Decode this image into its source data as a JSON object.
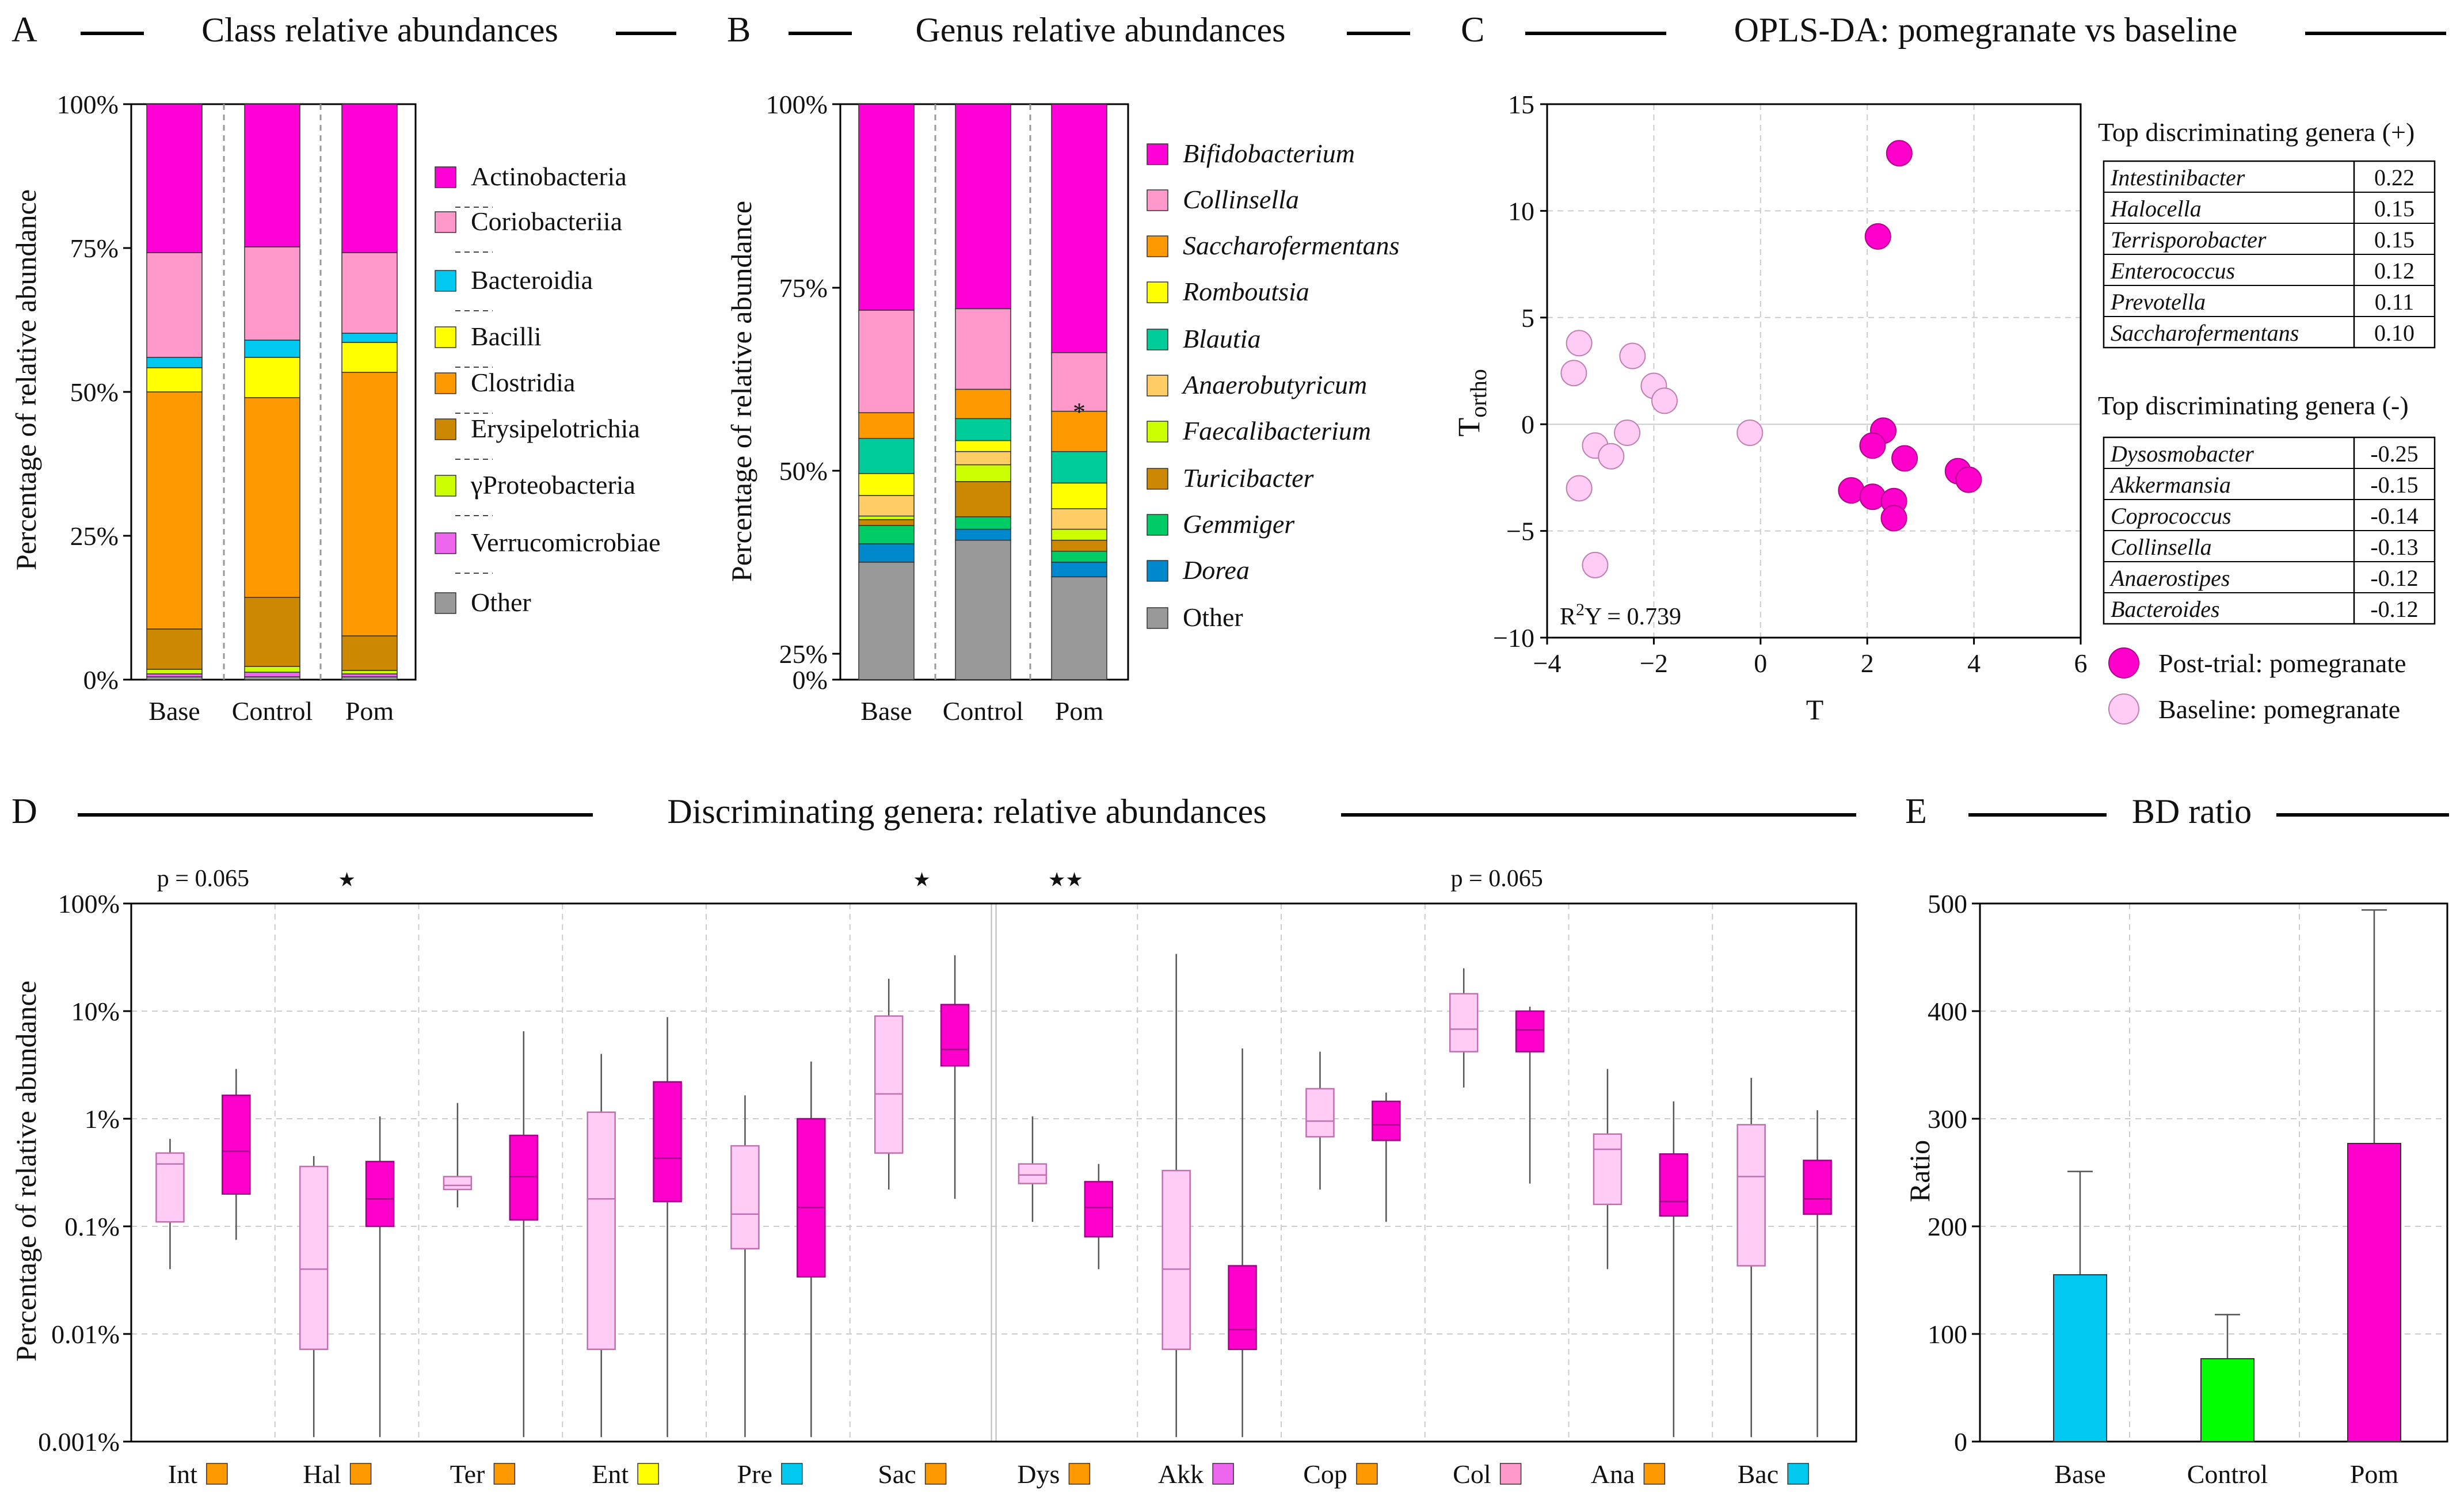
{
  "colors": {
    "Actinobacteria": "#ff00d7",
    "Coriobacteriia": "#ff99cc",
    "Bacteroidia": "#00c8ef",
    "Bacilli": "#ffff00",
    "Clostridia": "#ff9900",
    "Erysipelotrichia": "#cc8800",
    "Proteobacteria": "#ccff00",
    "Verrucomicrobiae": "#ee66ee",
    "Other": "#999999",
    "Bifidobacterium": "#ff00d7",
    "Collinsella": "#ff99cc",
    "Saccharofermentans": "#ff9900",
    "Romboutsia": "#ffff00",
    "Blautia": "#00cc99",
    "Anaerobutyricum": "#ffcc66",
    "Faecalibacterium": "#ccff00",
    "Turicibacter": "#cc8800",
    "Gemmiger": "#00cc66",
    "Dorea": "#0088cc",
    "base_box": "#ffccf5",
    "pom_box": "#ff00cc",
    "bd_base": "#00c8ef",
    "bd_control": "#00ff00",
    "bd_pom": "#ff00cc"
  },
  "panels": {
    "A": {
      "letter": "A",
      "title": "Class relative abundances"
    },
    "B": {
      "letter": "B",
      "title": "Genus relative abundances"
    },
    "C": {
      "letter": "C",
      "title": "OPLS-DA: pomegranate vs baseline"
    },
    "D": {
      "letter": "D",
      "title": "Discriminating genera: relative abundances"
    },
    "E": {
      "letter": "E",
      "title": "BD ratio"
    }
  },
  "chart_data": [
    {
      "id": "A",
      "type": "stacked-bar",
      "title": "Class relative abundances",
      "ylabel": "Percentage of relative abundance",
      "yticks": [
        "0%",
        "25%",
        "50%",
        "75%",
        "100%"
      ],
      "ylim": [
        0,
        100
      ],
      "categories": [
        "Base",
        "Control",
        "Pom"
      ],
      "series": [
        {
          "name": "Other",
          "values": [
            0.5,
            0.5,
            0.5
          ]
        },
        {
          "name": "Verrucomicrobiae",
          "values": [
            0.5,
            0.8,
            0.5
          ]
        },
        {
          "name": "γProteobacteria",
          "values": [
            0.8,
            1.0,
            0.6
          ]
        },
        {
          "name": "Erysipelotrichia",
          "values": [
            7.0,
            12.0,
            6.0
          ]
        },
        {
          "name": "Clostridia",
          "values": [
            41.2,
            34.7,
            45.8
          ]
        },
        {
          "name": "Bacilli",
          "values": [
            4.2,
            7.0,
            5.2
          ]
        },
        {
          "name": "Bacteroidia",
          "values": [
            1.8,
            3.0,
            1.6
          ]
        },
        {
          "name": "Coriobacteriia",
          "values": [
            18.2,
            16.2,
            14.0
          ]
        },
        {
          "name": "Actinobacteria",
          "values": [
            25.8,
            24.8,
            25.8
          ]
        }
      ],
      "legend": [
        "Actinobacteria",
        "Coriobacteriia",
        "Bacteroidia",
        "Bacilli",
        "Clostridia",
        "Erysipelotrichia",
        "γProteobacteria",
        "Verrucomicrobiae",
        "Other"
      ]
    },
    {
      "id": "B",
      "type": "stacked-bar",
      "title": "Genus relative abundances",
      "ylabel": "Percentage of relative abundance",
      "yticks": [
        "0%",
        "25%",
        "50%",
        "75%",
        "100%"
      ],
      "note": "broken axis between 0% and 25%",
      "categories": [
        "Base",
        "Control",
        "Pom"
      ],
      "series": [
        {
          "name": "Other",
          "values": [
            37.5,
            40.5,
            35.5
          ]
        },
        {
          "name": "Dorea",
          "values": [
            2.5,
            1.5,
            2.0
          ]
        },
        {
          "name": "Gemmiger",
          "values": [
            2.5,
            1.7,
            1.5
          ]
        },
        {
          "name": "Turicibacter",
          "values": [
            0.8,
            4.8,
            1.5
          ]
        },
        {
          "name": "Faecalibacterium",
          "values": [
            0.5,
            2.3,
            1.5
          ]
        },
        {
          "name": "Anaerobutyricum",
          "values": [
            2.8,
            1.8,
            2.8
          ]
        },
        {
          "name": "Romboutsia",
          "values": [
            3.0,
            1.5,
            3.5
          ]
        },
        {
          "name": "Blautia",
          "values": [
            4.8,
            3.0,
            4.3
          ]
        },
        {
          "name": "Saccharofermentans",
          "values": [
            3.5,
            4.0,
            5.5
          ]
        },
        {
          "name": "Collinsella",
          "values": [
            14.0,
            11.0,
            8.0
          ]
        },
        {
          "name": "Bifidobacterium",
          "values": [
            28.1,
            27.9,
            33.9
          ]
        }
      ],
      "legend": [
        "Bifidobacterium",
        "Collinsella",
        "Saccharofermentans",
        "Romboutsia",
        "Blautia",
        "Anaerobutyricum",
        "Faecalibacterium",
        "Turicibacter",
        "Gemmiger",
        "Dorea",
        "Other"
      ],
      "annotation": "*"
    },
    {
      "id": "C",
      "type": "scatter",
      "title": "OPLS-DA: pomegranate vs baseline",
      "xlabel": "T",
      "ylabel_main": "T",
      "ylabel_sub": "ortho",
      "xlim": [
        -4,
        6
      ],
      "ylim": [
        -10,
        15
      ],
      "xticks": [
        "−4",
        "−2",
        "0",
        "2",
        "4",
        "6"
      ],
      "yticks": [
        "−10",
        "−5",
        "0",
        "5",
        "10",
        "15"
      ],
      "r2_prefix": "R",
      "r2_sup": "2",
      "r2_rest": "Y = 0.739",
      "series": [
        {
          "name": "Post-trial: pomegranate",
          "points": [
            [
              2.6,
              12.7
            ],
            [
              2.2,
              8.8
            ],
            [
              2.3,
              -0.3
            ],
            [
              2.1,
              -1.0
            ],
            [
              2.7,
              -1.6
            ],
            [
              3.7,
              -2.2
            ],
            [
              3.9,
              -2.6
            ],
            [
              1.7,
              -3.1
            ],
            [
              2.1,
              -3.4
            ],
            [
              2.5,
              -3.6
            ],
            [
              2.5,
              -4.4
            ]
          ]
        },
        {
          "name": "Baseline: pomegranate",
          "points": [
            [
              -3.4,
              3.8
            ],
            [
              -3.5,
              2.4
            ],
            [
              -2.4,
              3.2
            ],
            [
              -2.0,
              1.8
            ],
            [
              -1.8,
              1.1
            ],
            [
              -2.5,
              -0.4
            ],
            [
              -3.1,
              -1.0
            ],
            [
              -2.8,
              -1.5
            ],
            [
              -3.4,
              -3.0
            ],
            [
              -3.1,
              -6.6
            ],
            [
              -0.2,
              -0.4
            ]
          ]
        }
      ],
      "top_positive_title": "Top discriminating genera (+)",
      "top_positive": [
        {
          "genus": "Intestinibacter",
          "value": "0.22"
        },
        {
          "genus": "Halocella",
          "value": "0.15"
        },
        {
          "genus": "Terrisporobacter",
          "value": "0.15"
        },
        {
          "genus": "Enterococcus",
          "value": "0.12"
        },
        {
          "genus": "Prevotella",
          "value": "0.11"
        },
        {
          "genus": "Saccharofermentans",
          "value": "0.10"
        }
      ],
      "top_negative_title": "Top discriminating genera (-)",
      "top_negative": [
        {
          "genus": "Dysosmobacter",
          "value": "-0.25"
        },
        {
          "genus": "Akkermansia",
          "value": "-0.15"
        },
        {
          "genus": "Coprococcus",
          "value": "-0.14"
        },
        {
          "genus": "Collinsella",
          "value": "-0.13"
        },
        {
          "genus": "Anaerostipes",
          "value": "-0.12"
        },
        {
          "genus": "Bacteroides",
          "value": "-0.12"
        }
      ]
    },
    {
      "id": "D",
      "type": "boxplot",
      "title": "Discriminating genera: relative abundances",
      "ylabel": "Percentage of relative abundance",
      "yscale": "log",
      "yticks": [
        "0.001%",
        "0.01%",
        "0.1%",
        "1%",
        "10%",
        "100%"
      ],
      "groups": [
        {
          "label": "Int",
          "class": "Clostridia",
          "base": [
            0.04,
            0.11,
            0.38,
            0.48,
            0.65
          ],
          "pom": [
            0.075,
            0.2,
            0.5,
            1.65,
            2.9
          ]
        },
        {
          "label": "Hal",
          "class": "Clostridia",
          "base": [
            0.0011,
            0.0072,
            0.04,
            0.36,
            0.45
          ],
          "pom": [
            0.0011,
            0.1,
            0.18,
            0.4,
            1.05
          ]
        },
        {
          "label": "Ter",
          "class": "Clostridia",
          "base": [
            0.15,
            0.22,
            0.24,
            0.29,
            1.4
          ],
          "pom": [
            0.0011,
            0.115,
            0.29,
            0.7,
            6.5
          ]
        },
        {
          "label": "Ent",
          "class": "Bacilli",
          "base": [
            0.0011,
            0.0072,
            0.18,
            1.15,
            4.0
          ],
          "pom": [
            0.0011,
            0.17,
            0.43,
            2.2,
            8.8
          ]
        },
        {
          "label": "Pre",
          "class": "Bacteroidia",
          "base": [
            0.0011,
            0.062,
            0.13,
            0.56,
            1.65
          ],
          "pom": [
            0.0011,
            0.034,
            0.15,
            1.0,
            3.4
          ]
        },
        {
          "label": "Sac",
          "class": "Clostridia",
          "base": [
            0.22,
            0.48,
            1.7,
            9.0,
            20.0
          ],
          "pom": [
            0.18,
            3.1,
            4.4,
            11.5,
            33.0
          ]
        },
        {
          "label": "Dys",
          "class": "Clostridia",
          "base": [
            0.11,
            0.25,
            0.3,
            0.38,
            1.05
          ],
          "pom": [
            0.04,
            0.08,
            0.15,
            0.26,
            0.38
          ]
        },
        {
          "label": "Akk",
          "class": "Verrucomicrobiae",
          "base": [
            0.0011,
            0.0072,
            0.04,
            0.33,
            34.0
          ],
          "pom": [
            0.0011,
            0.0072,
            0.011,
            0.043,
            4.5
          ]
        },
        {
          "label": "Cop",
          "class": "Clostridia",
          "base": [
            0.22,
            0.68,
            0.95,
            1.9,
            4.2
          ],
          "pom": [
            0.11,
            0.63,
            0.88,
            1.45,
            1.75
          ]
        },
        {
          "label": "Col",
          "class": "Coriobacteriia",
          "base": [
            1.95,
            4.2,
            6.8,
            14.5,
            25.0
          ],
          "pom": [
            0.25,
            4.2,
            6.7,
            10.0,
            11.0
          ]
        },
        {
          "label": "Ana",
          "class": "Clostridia",
          "base": [
            0.04,
            0.16,
            0.52,
            0.72,
            2.9
          ],
          "pom": [
            0.0011,
            0.125,
            0.17,
            0.47,
            1.45
          ]
        },
        {
          "label": "Bac",
          "class": "Bacteroidia",
          "base": [
            0.0011,
            0.043,
            0.29,
            0.88,
            2.4
          ],
          "pom": [
            0.0011,
            0.13,
            0.18,
            0.41,
            1.2
          ]
        }
      ],
      "annotations": [
        {
          "text": "p = 0.065",
          "group": "Int"
        },
        {
          "text": "★",
          "group": "Hal"
        },
        {
          "text": "★",
          "group": "Sac"
        },
        {
          "text": "★★",
          "group": "Dys"
        },
        {
          "text": "p = 0.065",
          "group": "Col"
        }
      ]
    },
    {
      "id": "E",
      "type": "bar",
      "title": "BD ratio",
      "ylabel": "Ratio",
      "categories": [
        "Base",
        "Control",
        "Pom"
      ],
      "values": [
        155,
        77,
        277
      ],
      "errors": [
        96,
        41,
        217
      ],
      "ylim": [
        0,
        500
      ],
      "yticks": [
        "0",
        "100",
        "200",
        "300",
        "400",
        "500"
      ]
    }
  ]
}
